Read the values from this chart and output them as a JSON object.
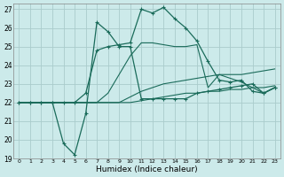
{
  "xlabel": "Humidex (Indice chaleur)",
  "background_color": "#cceaea",
  "grid_color": "#aacccc",
  "line_color": "#1a6b5a",
  "xlim": [
    -0.5,
    23.5
  ],
  "ylim": [
    19,
    27.3
  ],
  "yticks": [
    19,
    20,
    21,
    22,
    23,
    24,
    25,
    26,
    27
  ],
  "xticks": [
    0,
    1,
    2,
    3,
    4,
    5,
    6,
    7,
    8,
    9,
    10,
    11,
    12,
    13,
    14,
    15,
    16,
    17,
    18,
    19,
    20,
    21,
    22,
    23
  ],
  "line1_x": [
    0,
    1,
    2,
    3,
    4,
    5,
    6,
    7,
    8,
    9,
    10,
    11,
    12,
    13,
    14,
    15,
    16,
    17,
    18,
    19,
    20,
    21,
    22,
    23
  ],
  "line1_y": [
    22,
    22,
    22,
    22,
    19.8,
    19.2,
    21.4,
    26.3,
    25.8,
    25.0,
    25.0,
    22.2,
    22.2,
    22.2,
    22.2,
    22.2,
    22.5,
    22.6,
    22.7,
    22.8,
    22.9,
    23.0,
    22.5,
    22.8
  ],
  "line1_marker": true,
  "line2_x": [
    0,
    1,
    2,
    3,
    4,
    5,
    6,
    7,
    8,
    9,
    10,
    11,
    12,
    13,
    14,
    15,
    16,
    17,
    18,
    19,
    20,
    21,
    22,
    23
  ],
  "line2_y": [
    22,
    22,
    22,
    22,
    22,
    22,
    22,
    22,
    22.0,
    22.0,
    22.3,
    22.6,
    22.8,
    23.0,
    23.1,
    23.2,
    23.3,
    23.4,
    23.5,
    23.5,
    23.5,
    23.6,
    23.7,
    23.8
  ],
  "line2_marker": false,
  "line3_x": [
    0,
    1,
    2,
    3,
    4,
    5,
    6,
    7,
    8,
    9,
    10,
    11,
    12,
    13,
    14,
    15,
    16,
    17,
    18,
    19,
    20,
    21,
    22,
    23
  ],
  "line3_y": [
    22,
    22,
    22,
    22,
    22,
    22,
    22,
    22,
    22.0,
    22.0,
    22.0,
    22.1,
    22.2,
    22.3,
    22.4,
    22.5,
    22.5,
    22.6,
    22.6,
    22.7,
    22.7,
    22.8,
    22.8,
    22.9
  ],
  "line3_marker": false,
  "line4_x": [
    0,
    1,
    2,
    3,
    4,
    5,
    6,
    7,
    8,
    9,
    10,
    11,
    12,
    13,
    14,
    15,
    16,
    17,
    18,
    19,
    20,
    21,
    22,
    23
  ],
  "line4_y": [
    22,
    22,
    22,
    22,
    22,
    22,
    22,
    22,
    22.5,
    23.5,
    24.5,
    25.2,
    25.2,
    25.1,
    25.0,
    25.0,
    25.1,
    22.8,
    23.5,
    23.3,
    23.1,
    22.8,
    22.5,
    22.8
  ],
  "line4_marker": false,
  "line5_x": [
    0,
    1,
    2,
    3,
    4,
    5,
    6,
    7,
    8,
    9,
    10,
    11,
    12,
    13,
    14,
    15,
    16,
    17,
    18,
    19,
    20,
    21,
    22,
    23
  ],
  "line5_y": [
    22,
    22,
    22,
    22,
    22,
    22,
    22.5,
    24.8,
    25.0,
    25.1,
    25.2,
    27.0,
    26.8,
    27.1,
    26.5,
    26.0,
    25.3,
    24.2,
    23.2,
    23.1,
    23.2,
    22.6,
    22.5,
    22.8
  ],
  "line5_marker": true
}
